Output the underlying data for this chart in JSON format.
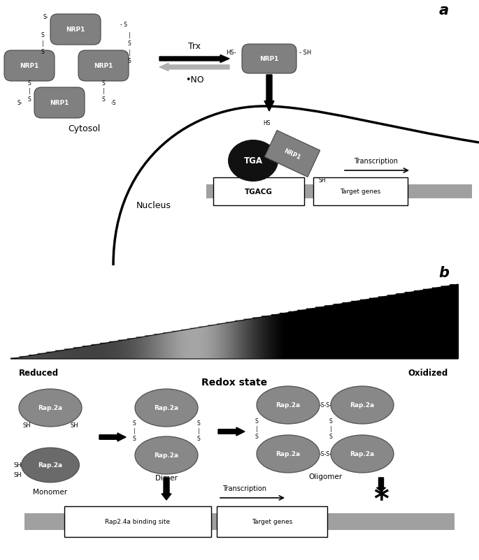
{
  "panel_a_label": "a",
  "panel_b_label": "b",
  "nrp1_color": "#808080",
  "tga_color": "#111111",
  "arrow_color": "black",
  "trx_label": "Trx",
  "no_label": "•NO",
  "tgacg_label": "TGACG",
  "target_genes_label": "Target genes",
  "transcription_label": "Transcription",
  "cytosol_label": "Cytosol",
  "nucleus_label": "Nucleus",
  "rap2a_color": "#888888",
  "rap2a_dark_color": "#6a6a6a",
  "reduced_label": "Reduced",
  "oxidized_label": "Oxidized",
  "redox_label": "Redox state",
  "monomer_label": "Monomer",
  "dimer_label": "Dimer",
  "oligomer_label": "Oligomer",
  "rap2a_binding_label": "Rap2.4a binding site",
  "target_genes_b_label": "Target genes",
  "transcription_b_label": "Transcription",
  "background_color": "white",
  "fig_w": 6.85,
  "fig_h": 8.03
}
